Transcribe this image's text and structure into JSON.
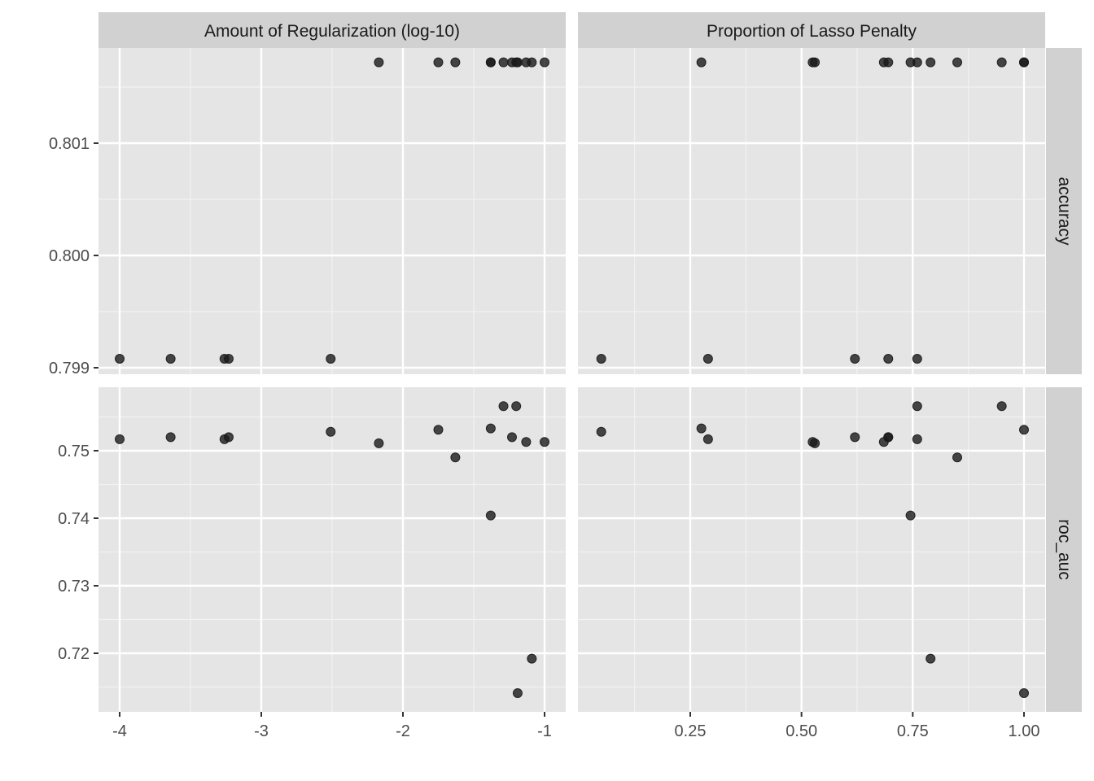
{
  "chart_data": {
    "type": "scatter",
    "layout": "facet_grid",
    "colors": {
      "panel_bg": "#e5e5e5",
      "strip_bg": "#d1d1d1",
      "grid": "#ffffff",
      "point": "#1a1a1a",
      "point_alpha": 0.8
    },
    "grid": true,
    "legend": "none",
    "column_facets": [
      "Amount of Regularization (log-10)",
      "Proportion of Lasso Penalty"
    ],
    "row_facets": [
      "accuracy",
      "roc_auc"
    ],
    "x_axes": [
      {
        "facet": "Amount of Regularization (log-10)",
        "ticks": [
          -4,
          -3,
          -2,
          -1
        ],
        "tick_labels": [
          "-4",
          "-3",
          "-2",
          "-1"
        ],
        "range": [
          -4.15,
          -0.85
        ]
      },
      {
        "facet": "Proportion of Lasso Penalty",
        "ticks": [
          0.25,
          0.5,
          0.75,
          1.0
        ],
        "tick_labels": [
          "0.25",
          "0.50",
          "0.75",
          "1.00"
        ],
        "range": [
          0.0,
          1.05
        ]
      }
    ],
    "y_axes": [
      {
        "facet": "accuracy",
        "ticks": [
          0.799,
          0.8,
          0.801
        ],
        "tick_labels": [
          "0.799",
          "0.800",
          "0.801"
        ],
        "range": [
          0.79895,
          0.80186
        ]
      },
      {
        "facet": "roc_auc",
        "ticks": [
          0.72,
          0.73,
          0.74,
          0.75
        ],
        "tick_labels": [
          "0.72",
          "0.73",
          "0.74",
          "0.75"
        ],
        "range": [
          0.7125,
          0.7605
        ]
      }
    ],
    "panels": [
      {
        "row": "accuracy",
        "col": "Amount of Regularization (log-10)",
        "x": [
          -2.17,
          -1.75,
          -1.63,
          -1.38,
          -1.38,
          -1.29,
          -1.23,
          -1.2,
          -1.19,
          -1.13,
          -1.09,
          -1.0,
          -4.0,
          -3.64,
          -3.26,
          -3.23,
          -2.51
        ],
        "y": [
          0.80172,
          0.80172,
          0.80172,
          0.80172,
          0.80172,
          0.80172,
          0.80172,
          0.80172,
          0.80172,
          0.80172,
          0.80172,
          0.80172,
          0.79908,
          0.79908,
          0.79908,
          0.79908,
          0.79908
        ]
      },
      {
        "row": "accuracy",
        "col": "Proportion of Lasso Penalty",
        "x": [
          0.275,
          0.525,
          0.53,
          0.685,
          0.695,
          0.745,
          0.76,
          0.79,
          0.85,
          0.95,
          1.0,
          1.0,
          0.05,
          0.29,
          0.62,
          0.695,
          0.76
        ],
        "y": [
          0.80172,
          0.80172,
          0.80172,
          0.80172,
          0.80172,
          0.80172,
          0.80172,
          0.80172,
          0.80172,
          0.80172,
          0.80172,
          0.80172,
          0.79908,
          0.79908,
          0.79908,
          0.79908,
          0.79908
        ]
      },
      {
        "row": "roc_auc",
        "col": "Amount of Regularization (log-10)",
        "x": [
          -4.0,
          -3.64,
          -3.26,
          -3.23,
          -2.51,
          -2.17,
          -1.75,
          -1.63,
          -1.38,
          -1.38,
          -1.29,
          -1.23,
          -1.2,
          -1.19,
          -1.13,
          -1.09,
          -1.0
        ],
        "y": [
          0.7517,
          0.752,
          0.7517,
          0.752,
          0.7528,
          0.7511,
          0.7531,
          0.749,
          0.7533,
          0.7404,
          0.7566,
          0.752,
          0.7566,
          0.7141,
          0.7513,
          0.7192,
          0.7513
        ]
      },
      {
        "row": "roc_auc",
        "col": "Proportion of Lasso Penalty",
        "x": [
          0.05,
          0.275,
          0.29,
          0.525,
          0.53,
          0.62,
          0.685,
          0.695,
          0.695,
          0.745,
          0.76,
          0.76,
          0.79,
          0.85,
          0.95,
          1.0,
          1.0
        ],
        "y": [
          0.7528,
          0.7533,
          0.7517,
          0.7513,
          0.7511,
          0.752,
          0.7513,
          0.752,
          0.752,
          0.7404,
          0.7566,
          0.7517,
          0.7192,
          0.749,
          0.7566,
          0.7531,
          0.7141
        ]
      }
    ]
  }
}
